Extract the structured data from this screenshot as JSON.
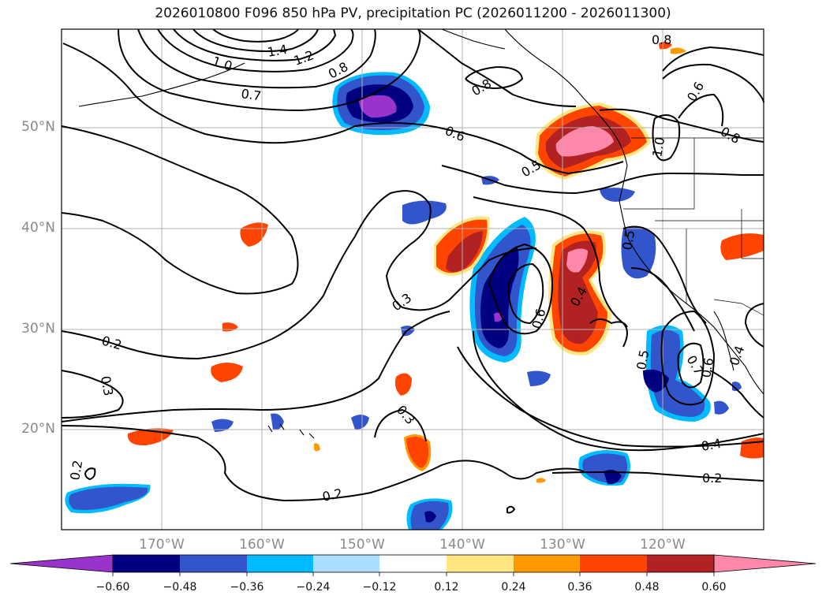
{
  "title": "2026010800 F096 850 hPa PV, precipitation PC (2026011200 - 2026011300)",
  "lat_labels": [
    "50°N",
    "40°N",
    "30°N",
    "20°N"
  ],
  "lon_labels": [
    "170°W",
    "160°W",
    "150°W",
    "140°W",
    "130°W",
    "120°W"
  ],
  "colorbar": {
    "labels": [
      "−0.60",
      "−0.48",
      "−0.36",
      "−0.24",
      "−0.12",
      "0.12",
      "0.24",
      "0.36",
      "0.48",
      "0.60"
    ],
    "colors": [
      "#9933cc",
      "#000080",
      "#3355cc",
      "#00bbff",
      "#aaddff",
      "#ffffff",
      "#ffe680",
      "#ff9900",
      "#ff4400",
      "#b22222",
      "#ff88aa"
    ]
  },
  "contour_labels": {
    "c1": "1.0",
    "c2": "1.2",
    "c3": "1.4",
    "c4": "0.8",
    "c5": "0.7",
    "c6": "0.6",
    "c7": "0.8",
    "c8": "0.8",
    "c9": "0.6",
    "c10": "0.8",
    "c11": "0.5",
    "c12": "1.0",
    "c13": "0.3",
    "c14": "0.2",
    "c15": "0.3",
    "c16": "0.4",
    "c17": "0.6",
    "c18": "0.5",
    "c19": "0.5",
    "c20": "0.7",
    "c21": "0.6",
    "c22": "0.4",
    "c23": "0.4",
    "c24": "0.2",
    "c25": "0.3",
    "c26": "0.2",
    "c27": "0.2"
  }
}
